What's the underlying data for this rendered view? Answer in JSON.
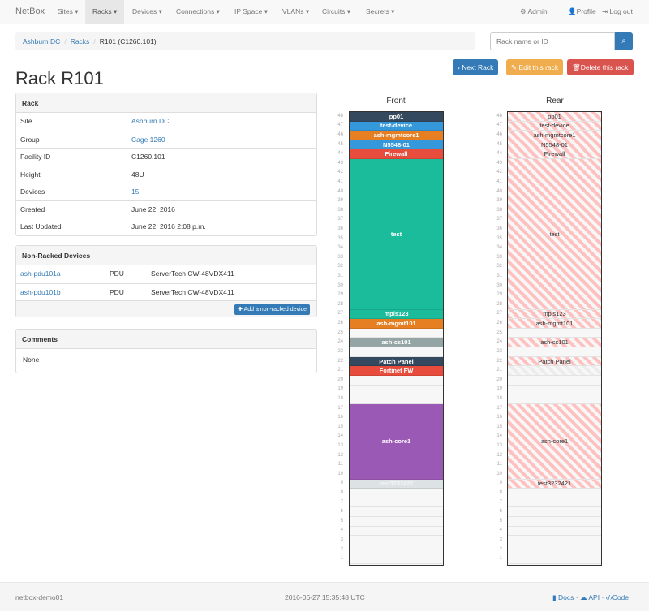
{
  "nav": {
    "brand": "NetBox",
    "items": [
      {
        "label": "Sites ▾"
      },
      {
        "label": "Racks ▾",
        "active": true
      },
      {
        "label": "Devices ▾"
      },
      {
        "label": "Connections ▾"
      },
      {
        "label": "IP Space ▾"
      },
      {
        "label": "VLANs ▾"
      },
      {
        "label": "Circuits ▾"
      },
      {
        "label": "Secrets ▾"
      }
    ],
    "admin": "Admin",
    "profile": "Profile",
    "logout": "Log out"
  },
  "breadcrumb": [
    "Ashburn DC",
    "Racks",
    "R101 (C1260.101)"
  ],
  "search": {
    "placeholder": "Rack name or ID"
  },
  "buttons": {
    "next": "Next Rack",
    "edit": "Edit this rack",
    "delete": "Delete this rack"
  },
  "title": "Rack R101",
  "rack_panel": {
    "heading": "Rack",
    "rows": [
      {
        "label": "Site",
        "value": "Ashburn DC",
        "link": true
      },
      {
        "label": "Group",
        "value": "Cage 1260",
        "link": true
      },
      {
        "label": "Facility ID",
        "value": "C1260.101"
      },
      {
        "label": "Height",
        "value": "48U"
      },
      {
        "label": "Devices",
        "value": "15",
        "link": true
      },
      {
        "label": "Created",
        "value": "June 22, 2016"
      },
      {
        "label": "Last Updated",
        "value": "June 22, 2016 2:08 p.m."
      }
    ]
  },
  "nonracked": {
    "heading": "Non-Racked Devices",
    "rows": [
      {
        "name": "ash-pdu101a",
        "role": "PDU",
        "type": "ServerTech CW-48VDX411"
      },
      {
        "name": "ash-pdu101b",
        "role": "PDU",
        "type": "ServerTech CW-48VDX411"
      }
    ],
    "add_button": "Add a non-racked device"
  },
  "comments": {
    "heading": "Comments",
    "body": "None"
  },
  "rack": {
    "front_label": "Front",
    "rear_label": "Rear",
    "height": 48,
    "devices": [
      {
        "name": "pp01",
        "top": 48,
        "size": 1,
        "color": "#34495e"
      },
      {
        "name": "test-device",
        "top": 47,
        "size": 1,
        "color": "#3498db"
      },
      {
        "name": "ash-mgmtcore1",
        "top": 46,
        "size": 1,
        "color": "#e67e22"
      },
      {
        "name": "N5548-01",
        "top": 45,
        "size": 1,
        "color": "#3498db"
      },
      {
        "name": "Firewall",
        "top": 44,
        "size": 1,
        "color": "#e74c3c"
      },
      {
        "name": "test",
        "top": 43,
        "size": 16,
        "color": "#1abc9c"
      },
      {
        "name": "mpls123",
        "top": 27,
        "size": 1,
        "color": "#1abc9c"
      },
      {
        "name": "ash-mgmt101",
        "top": 26,
        "size": 1,
        "color": "#e67e22"
      },
      {
        "name": "ash-cs101",
        "top": 24,
        "size": 1,
        "color": "#95a5a6"
      },
      {
        "name": "Patch Panel",
        "top": 22,
        "size": 1,
        "color": "#34495e"
      },
      {
        "name": "Fortinet FW",
        "top": 21,
        "size": 1,
        "color": "#e74c3c",
        "rear": "other"
      },
      {
        "name": "ash-core1",
        "top": 17,
        "size": 8,
        "color": "#9b59b6"
      },
      {
        "name": "test3232421",
        "top": 9,
        "size": 1,
        "color": "#dde3e5"
      }
    ]
  },
  "footer": {
    "host": "netbox-demo01",
    "time": "2016-06-27 15:35:48 UTC",
    "docs": "Docs",
    "api": "API",
    "code": "Code"
  }
}
